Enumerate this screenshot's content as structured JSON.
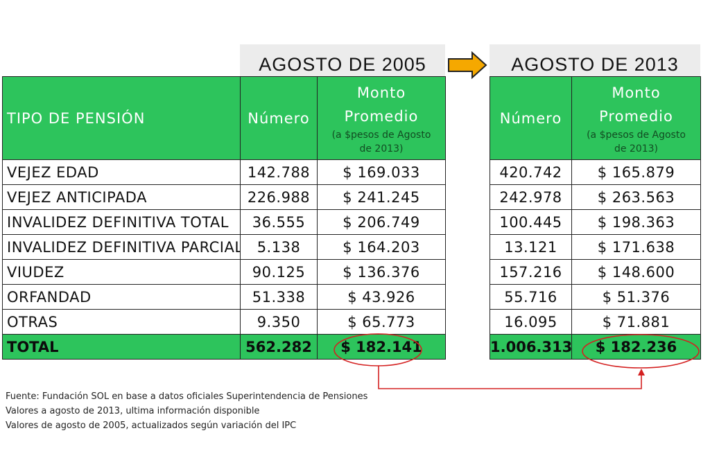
{
  "periods": {
    "left": "AGOSTO DE 2005",
    "right": "AGOSTO DE 2013"
  },
  "headers": {
    "tipo": "TIPO DE PENSIÓN",
    "numero": "Número",
    "monto_line1": "Monto",
    "monto_line2": "Promedio",
    "monto_note1": "(a $pesos de Agosto",
    "monto_note2": "de 2013)"
  },
  "rows": [
    {
      "tipo": "VEJEZ EDAD",
      "n2005": "142.788",
      "m2005": "$ 169.033",
      "n2013": "420.742",
      "m2013": "$ 165.879"
    },
    {
      "tipo": "VEJEZ ANTICIPADA",
      "n2005": "226.988",
      "m2005": "$ 241.245",
      "n2013": "242.978",
      "m2013": "$ 263.563"
    },
    {
      "tipo": "INVALIDEZ DEFINITIVA TOTAL",
      "n2005": "36.555",
      "m2005": "$ 206.749",
      "n2013": "100.445",
      "m2013": "$ 198.363"
    },
    {
      "tipo": "INVALIDEZ DEFINITIVA PARCIAL",
      "n2005": "5.138",
      "m2005": "$ 164.203",
      "n2013": "13.121",
      "m2013": "$ 171.638"
    },
    {
      "tipo": "VIUDEZ",
      "n2005": "90.125",
      "m2005": "$ 136.376",
      "n2013": "157.216",
      "m2013": "$ 148.600"
    },
    {
      "tipo": "ORFANDAD",
      "n2005": "51.338",
      "m2005": "$ 43.926",
      "n2013": "55.716",
      "m2013": "$ 51.376"
    },
    {
      "tipo": "OTRAS",
      "n2005": "9.350",
      "m2005": "$ 65.773",
      "n2013": "16.095",
      "m2013": "$ 71.881"
    }
  ],
  "total": {
    "tipo": "TOTAL",
    "n2005": "562.282",
    "m2005": "$ 182.141",
    "n2013": "1.006.313",
    "m2013": "$ 182.236"
  },
  "source": [
    "Fuente: Fundación SOL en base a datos oficiales Superintendencia de Pensiones",
    "Valores a agosto de 2013, ultima información disponible",
    "Valores de agosto de 2005, actualizados según variación del IPC"
  ],
  "colors": {
    "header_green": "#2dc45c",
    "arrow_orange": "#f5a800",
    "highlight_red": "#d42020"
  }
}
